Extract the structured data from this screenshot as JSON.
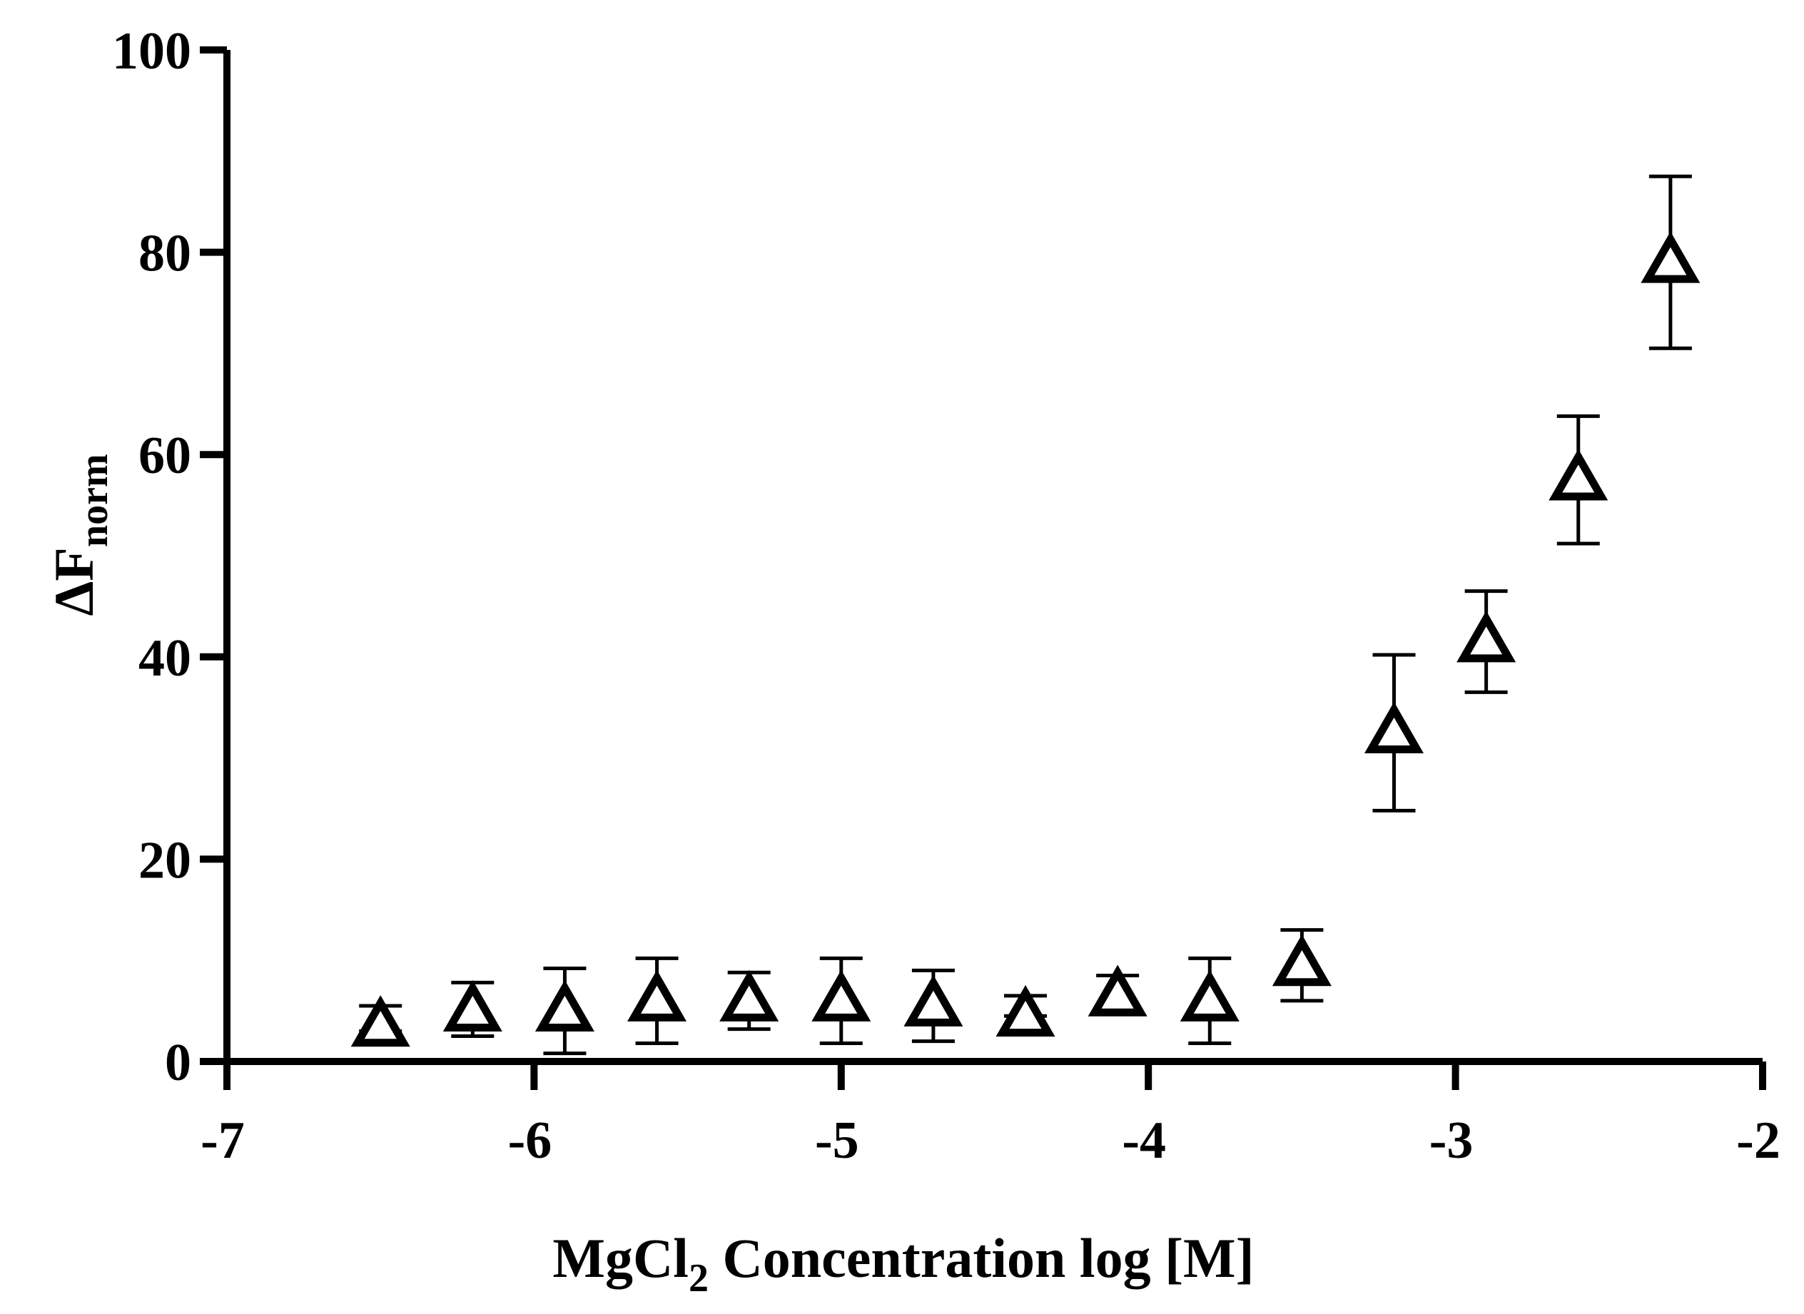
{
  "chart_data": {
    "type": "scatter",
    "title": "",
    "xlabel": {
      "main": "MgCl",
      "subscript": "2",
      "rest": " Concentration log [M]"
    },
    "ylabel": {
      "main": "ΔF",
      "subscript": "norm"
    },
    "xlim": [
      -7,
      -2
    ],
    "ylim": [
      0,
      100
    ],
    "xticks": [
      -7,
      -6,
      -5,
      -4,
      -3,
      -2
    ],
    "yticks": [
      0,
      20,
      40,
      60,
      80,
      100
    ],
    "xtick_labels": [
      "-7",
      "-6",
      "-5",
      "-4",
      "-3",
      "-2"
    ],
    "ytick_labels": [
      "0",
      "20",
      "40",
      "60",
      "80",
      "100"
    ],
    "marker": "open-triangle",
    "color": "#000000",
    "series": [
      {
        "name": "MgCl2",
        "x": [
          -6.5,
          -6.2,
          -5.9,
          -5.6,
          -5.3,
          -5.0,
          -4.7,
          -4.4,
          -4.1,
          -3.8,
          -3.5,
          -3.2,
          -2.9,
          -2.6,
          -2.3
        ],
        "y": [
          3.5,
          5.0,
          5.0,
          6.0,
          6.0,
          6.0,
          5.5,
          4.5,
          6.5,
          6.0,
          9.5,
          32.5,
          41.5,
          57.5,
          79.0
        ],
        "err_low": [
          3.0,
          2.5,
          0.8,
          1.8,
          3.2,
          1.8,
          2.0,
          4.5,
          5.5,
          1.8,
          6.0,
          24.8,
          36.5,
          51.2,
          70.5
        ],
        "err_high": [
          5.5,
          7.8,
          9.2,
          10.2,
          8.8,
          10.2,
          9.0,
          6.5,
          8.5,
          10.2,
          13.0,
          40.2,
          46.5,
          63.8,
          87.5
        ]
      }
    ]
  }
}
